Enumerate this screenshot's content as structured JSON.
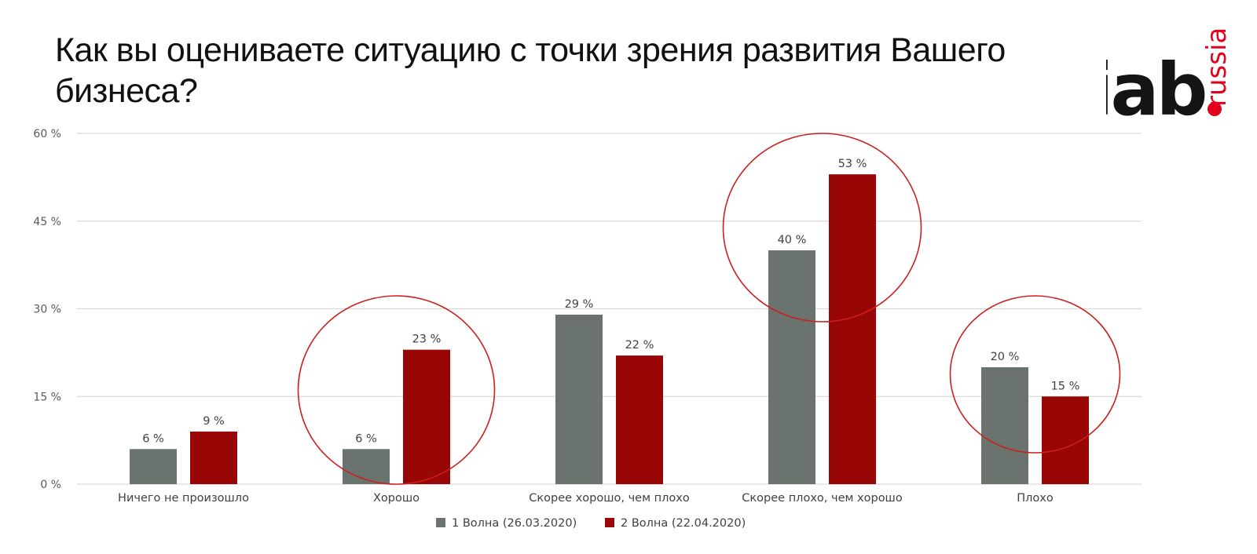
{
  "title": "Как вы оцениваете ситуацию с точки зрения развития Вашего бизнеса?",
  "logo": {
    "brand": "iab",
    "suffix": "russia"
  },
  "colors": {
    "wave1": "#6b736f",
    "wave2": "#990606",
    "grid": "#d9d9d9",
    "highlight": "#cc1f1f",
    "brand_red": "#e3001b",
    "brand_dark": "#141414"
  },
  "chart_data": {
    "type": "bar",
    "categories": [
      "Ничего не произошло",
      "Хорошо",
      "Скорее хорошо, чем плохо",
      "Скорее плохо, чем хорошо",
      "Плохо"
    ],
    "series": [
      {
        "name": "1 Волна (26.03.2020)",
        "values": [
          6,
          6,
          29,
          40,
          20
        ],
        "labels": [
          "6 %",
          "6 %",
          "29 %",
          "40 %",
          "20 %"
        ]
      },
      {
        "name": "2 Волна (22.04.2020)",
        "values": [
          9,
          23,
          22,
          53,
          15
        ],
        "labels": [
          "9 %",
          "23 %",
          "22 %",
          "53 %",
          "15 %"
        ]
      }
    ],
    "ylim": [
      0,
      60
    ],
    "yticks": [
      0,
      15,
      30,
      45,
      60
    ],
    "ytick_labels": [
      "0 %",
      "15 %",
      "30 %",
      "45 %",
      "60 %"
    ],
    "grid": true,
    "legend": "bottom",
    "highlighted_categories": [
      "Хорошо",
      "Скорее плохо, чем хорошо",
      "Плохо"
    ]
  }
}
